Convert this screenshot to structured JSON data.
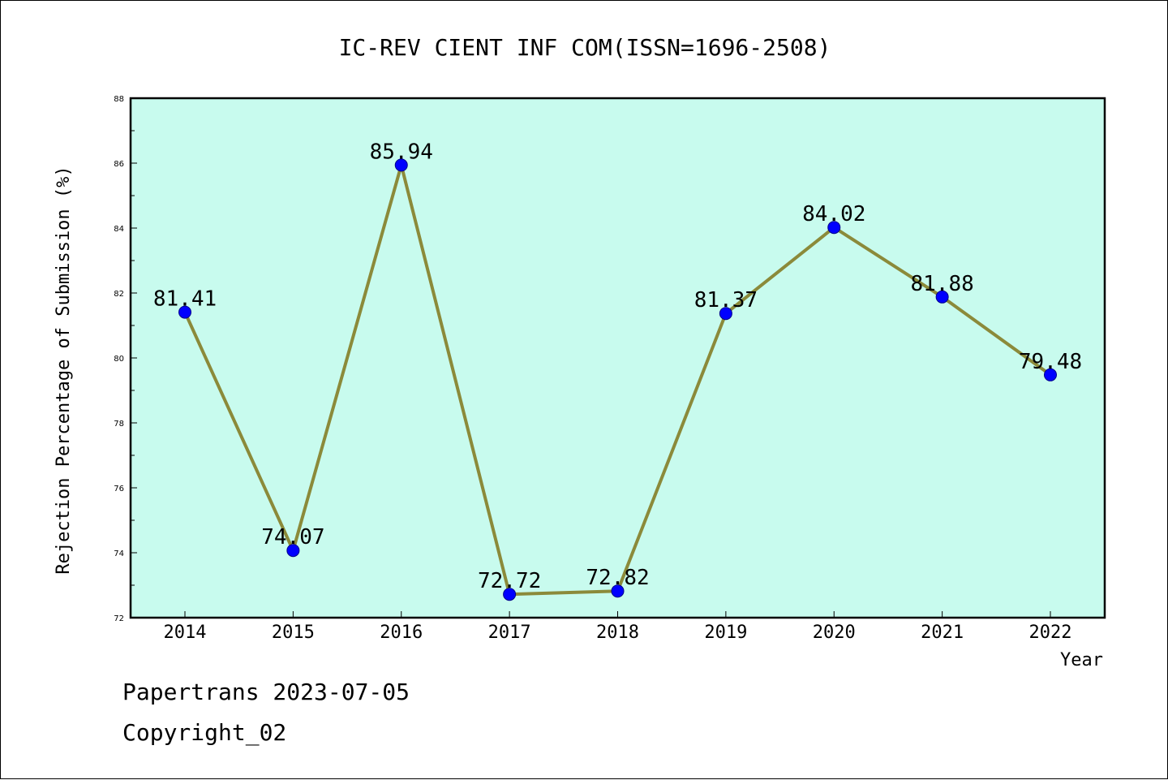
{
  "chart_data": {
    "type": "line",
    "title": "IC-REV CIENT INF COM(ISSN=1696-2508)",
    "xlabel": "Year",
    "ylabel": "Rejection Percentage of Submission (%)",
    "categories": [
      "2014",
      "2015",
      "2016",
      "2017",
      "2018",
      "2019",
      "2020",
      "2021",
      "2022"
    ],
    "series": [
      {
        "values": [
          81.41,
          74.07,
          85.94,
          72.72,
          72.82,
          81.37,
          84.02,
          81.88,
          79.48
        ],
        "labels": [
          "81.41",
          "74.07",
          "85.94",
          "72.72",
          "72.82",
          "81.37",
          "84.02",
          "81.88",
          "79.48"
        ]
      }
    ],
    "ylim": [
      72,
      88
    ],
    "yticks": [
      "72",
      "74",
      "76",
      "78",
      "80",
      "82",
      "84",
      "86",
      "88"
    ],
    "grid": false,
    "legend": "none",
    "colors": {
      "plot_background": "#c8fbee",
      "line": "#8b8a3a",
      "marker": "#0000ff",
      "marker_edge": "#00008b"
    }
  },
  "footer": {
    "line1": "Papertrans 2023-07-05",
    "line2": "Copyright_02"
  }
}
